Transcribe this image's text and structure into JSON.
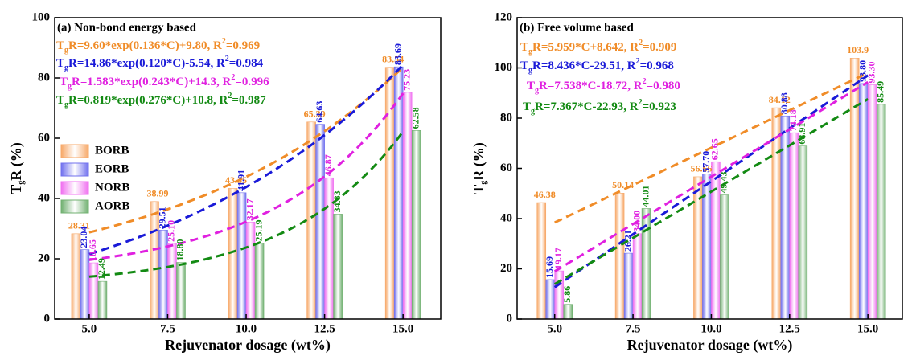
{
  "chart_data": [
    {
      "type": "bar",
      "title": "(a) Non-bond energy based",
      "xlabel": "Rejuvenator dosage (wt%)",
      "ylabel": [
        "T",
        "g",
        "R (%)"
      ],
      "x": [
        5.0,
        7.5,
        10.0,
        12.5,
        15.0
      ],
      "xlim": [
        3.9,
        16.2
      ],
      "xticks": [
        {
          "value": 5,
          "label": "5.0"
        },
        {
          "value": 7.5,
          "label": "7.5"
        },
        {
          "value": 10,
          "label": "10.0"
        },
        {
          "value": 12.5,
          "label": "12.5"
        },
        {
          "value": 15,
          "label": "15.0"
        }
      ],
      "ylim": [
        0,
        100
      ],
      "yticks": [
        0,
        20,
        40,
        60,
        80,
        100
      ],
      "legend": "left",
      "series": [
        {
          "name": "BORB",
          "color": "#f7a868",
          "text_color": "#f08c28",
          "values": [
            28.31,
            38.99,
            43.35,
            65.39,
            83.54
          ],
          "value_labels": [
            "28.31",
            "38.99",
            "43.35",
            "65.39",
            "83.54"
          ],
          "fit": {
            "model": "exp",
            "a": 9.6,
            "b": 0.136,
            "c": 9.8
          },
          "equation": [
            "T",
            "g",
            "R=9.60*exp(0.136*C)+9.80, R",
            "2",
            "=0.969"
          ]
        },
        {
          "name": "EORB",
          "color": "#7070ee",
          "text_color": "#1a1ad8",
          "values": [
            23.04,
            29.51,
            41.91,
            64.63,
            83.69
          ],
          "value_labels": [
            "23.04",
            "29.51",
            "41.91",
            "64.63",
            "83.69"
          ],
          "fit": {
            "model": "exp",
            "a": 14.86,
            "b": 0.12,
            "c": -5.54
          },
          "equation": [
            "T",
            "g",
            "R=14.86*exp(0.120*C)-5.54, R",
            "2",
            "=0.984"
          ]
        },
        {
          "name": "NORB",
          "color": "#f070f0",
          "text_color": "#e020e0",
          "values": [
            18.65,
            25.1,
            32.17,
            46.87,
            75.23
          ],
          "value_labels": [
            "18.65",
            "25.10",
            "32.17",
            "46.87",
            "75.23"
          ],
          "fit": {
            "model": "exp",
            "a": 1.583,
            "b": 0.243,
            "c": 14.3
          },
          "equation": [
            "T",
            "g",
            "R=1.583*exp(0.243*C)+14.3, R",
            "2",
            "=0.996"
          ]
        },
        {
          "name": "AORB",
          "color": "#70b070",
          "text_color": "#138a13",
          "values": [
            12.49,
            18.8,
            25.19,
            34.83,
            62.58
          ],
          "value_labels": [
            "12.49",
            "18.80",
            "25.19",
            "34.83",
            "62.58"
          ],
          "fit": {
            "model": "exp",
            "a": 0.819,
            "b": 0.276,
            "c": 10.8
          },
          "equation": [
            "T",
            "g",
            "R=0.819*exp(0.276*C)+10.8, R",
            "2",
            "=0.987"
          ]
        }
      ]
    },
    {
      "type": "bar",
      "title": "(b) Free volume based",
      "xlabel": "Rejuvenator dosage (wt%)",
      "ylabel": [
        "T",
        "g",
        "R (%)"
      ],
      "x": [
        5.0,
        7.5,
        10.0,
        12.5,
        15.0
      ],
      "xlim": [
        3.8,
        16.1
      ],
      "xticks": [
        {
          "value": 5,
          "label": "5.0"
        },
        {
          "value": 7.5,
          "label": "7.5"
        },
        {
          "value": 10,
          "label": "10.0"
        },
        {
          "value": 12.5,
          "label": "12.5"
        },
        {
          "value": 15,
          "label": "15.0"
        }
      ],
      "ylim": [
        0,
        120
      ],
      "yticks": [
        0,
        20,
        40,
        60,
        80,
        100,
        120
      ],
      "series": [
        {
          "color": "#f7a868",
          "text_color": "#f08c28",
          "values": [
            46.38,
            50.14,
            56.66,
            84.12,
            103.9
          ],
          "value_labels": [
            "46.38",
            "50.14",
            "56.66",
            "84.12",
            "103.9"
          ],
          "fit": {
            "model": "linear",
            "a": 5.959,
            "c": 8.642
          },
          "equation": [
            "T",
            "g",
            "R=5.959*C+8.642, R",
            "2",
            "=0.909"
          ]
        },
        {
          "color": "#7070ee",
          "text_color": "#1a1ad8",
          "values": [
            15.69,
            26.21,
            57.7,
            80.88,
            93.8
          ],
          "value_labels": [
            "15.69",
            "26.21",
            "57.70",
            "80.88",
            "93.80"
          ],
          "fit": {
            "model": "linear",
            "a": 8.436,
            "c": -29.51
          },
          "equation": [
            "T",
            "g",
            "R=8.436*C-29.51, R",
            "2",
            "=0.968"
          ]
        },
        {
          "color": "#f070f0",
          "text_color": "#e020e0",
          "values": [
            19.17,
            34.0,
            62.65,
            74.18,
            93.3
          ],
          "value_labels": [
            "19.17",
            "34.00",
            "62.65",
            "74.18",
            "93.30"
          ],
          "fit": {
            "model": "linear",
            "a": 7.538,
            "c": -18.72
          },
          "equation": [
            "T",
            "g",
            "R=7.538*C-18.72, R",
            "2",
            "=0.980"
          ]
        },
        {
          "color": "#70b070",
          "text_color": "#138a13",
          "values": [
            5.86,
            44.01,
            49.43,
            68.91,
            85.49
          ],
          "value_labels": [
            "5.86",
            "44.01",
            "49.43",
            "68.91",
            "85.49"
          ],
          "fit": {
            "model": "linear",
            "a": 7.367,
            "c": -22.93
          },
          "equation": [
            "T",
            "g",
            "R=7.367*C-22.93, R",
            "2",
            "=0.923"
          ]
        }
      ]
    }
  ]
}
